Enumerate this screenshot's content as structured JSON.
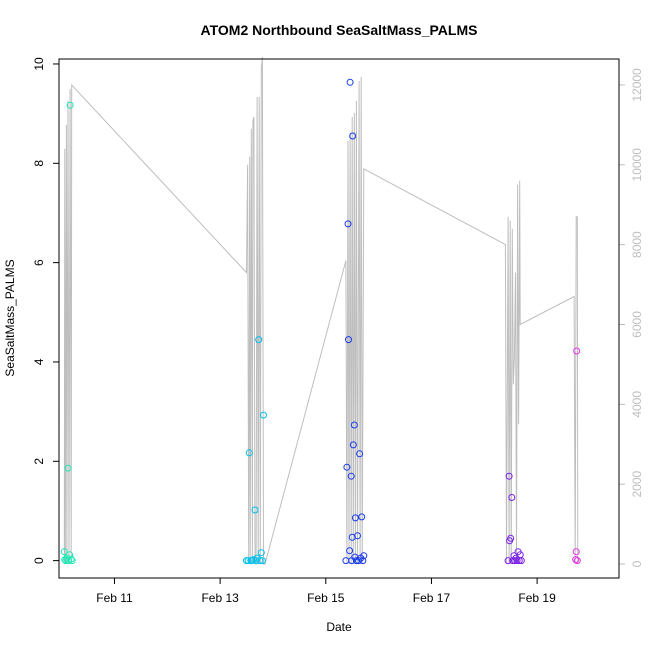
{
  "chart_data": {
    "type": "scatter",
    "title": "ATOM2 Northbound SeaSaltMass_PALMS",
    "xlabel": "Date",
    "ylabel": "SeaSaltMass_PALMS",
    "x_unit": "days (February)",
    "xlim": [
      9.95,
      20.55
    ],
    "ylim": [
      -0.35,
      10.1
    ],
    "x_ticks": [
      {
        "value": 11,
        "label": "Feb 11"
      },
      {
        "value": 13,
        "label": "Feb 13"
      },
      {
        "value": 15,
        "label": "Feb 15"
      },
      {
        "value": 17,
        "label": "Feb 17"
      },
      {
        "value": 19,
        "label": "Feb 19"
      }
    ],
    "y_ticks": [
      {
        "value": 0,
        "label": "0"
      },
      {
        "value": 2,
        "label": "2"
      },
      {
        "value": 4,
        "label": "4"
      },
      {
        "value": 6,
        "label": "6"
      },
      {
        "value": 8,
        "label": "8"
      },
      {
        "value": 10,
        "label": "10"
      }
    ],
    "y2lim": [
      -350,
      12650
    ],
    "y2_ticks": [
      {
        "value": 0,
        "label": "0"
      },
      {
        "value": 2000,
        "label": "2000"
      },
      {
        "value": 4000,
        "label": "4000"
      },
      {
        "value": 6000,
        "label": "6000"
      },
      {
        "value": 8000,
        "label": "8000"
      },
      {
        "value": 10000,
        "label": "10000"
      },
      {
        "value": 12000,
        "label": "12000"
      }
    ],
    "grid": false,
    "legend": "none",
    "colors": {
      "line": "#bebebe",
      "axis": "#000000",
      "right_axis": "#bebebe"
    },
    "points": [
      {
        "x": 10.05,
        "y": 0.18,
        "color": "#1de9b6"
      },
      {
        "x": 10.06,
        "y": 0.02,
        "color": "#1de9b6"
      },
      {
        "x": 10.08,
        "y": 0.0,
        "color": "#1de9b6"
      },
      {
        "x": 10.1,
        "y": 0.05,
        "color": "#1de9b6"
      },
      {
        "x": 10.12,
        "y": 1.86,
        "color": "#1de9b6"
      },
      {
        "x": 10.13,
        "y": 0.0,
        "color": "#1de9b6"
      },
      {
        "x": 10.15,
        "y": 0.12,
        "color": "#1de9b6"
      },
      {
        "x": 10.16,
        "y": 9.17,
        "color": "#1de9b6"
      },
      {
        "x": 10.18,
        "y": 0.03,
        "color": "#1de9b6"
      },
      {
        "x": 10.2,
        "y": 0.0,
        "color": "#1de9b6"
      },
      {
        "x": 13.5,
        "y": 0.0,
        "color": "#00c0ec"
      },
      {
        "x": 13.53,
        "y": 0.0,
        "color": "#00c0ec"
      },
      {
        "x": 13.55,
        "y": 2.17,
        "color": "#00c0ec"
      },
      {
        "x": 13.58,
        "y": 0.0,
        "color": "#00c0ec"
      },
      {
        "x": 13.6,
        "y": 0.0,
        "color": "#00c0ec"
      },
      {
        "x": 13.63,
        "y": 0.02,
        "color": "#00c0ec"
      },
      {
        "x": 13.66,
        "y": 1.02,
        "color": "#00c0ec"
      },
      {
        "x": 13.68,
        "y": 0.0,
        "color": "#00c0ec"
      },
      {
        "x": 13.7,
        "y": 0.05,
        "color": "#00c0ec"
      },
      {
        "x": 13.73,
        "y": 4.45,
        "color": "#00c0ec"
      },
      {
        "x": 13.75,
        "y": 0.0,
        "color": "#00c0ec"
      },
      {
        "x": 13.78,
        "y": 0.16,
        "color": "#00c0ec"
      },
      {
        "x": 13.8,
        "y": 0.0,
        "color": "#00c0ec"
      },
      {
        "x": 13.82,
        "y": 2.93,
        "color": "#00c0ec"
      },
      {
        "x": 15.38,
        "y": 0.0,
        "color": "#1a3cf0"
      },
      {
        "x": 15.4,
        "y": 1.88,
        "color": "#1a3cf0"
      },
      {
        "x": 15.42,
        "y": 6.78,
        "color": "#1a3cf0"
      },
      {
        "x": 15.43,
        "y": 4.45,
        "color": "#1a3cf0"
      },
      {
        "x": 15.45,
        "y": 0.2,
        "color": "#1a3cf0"
      },
      {
        "x": 15.46,
        "y": 9.63,
        "color": "#1a3cf0"
      },
      {
        "x": 15.48,
        "y": 1.7,
        "color": "#1a3cf0"
      },
      {
        "x": 15.49,
        "y": 0.0,
        "color": "#1a3cf0"
      },
      {
        "x": 15.5,
        "y": 0.47,
        "color": "#1a3cf0"
      },
      {
        "x": 15.51,
        "y": 8.55,
        "color": "#1a3cf0"
      },
      {
        "x": 15.52,
        "y": 2.33,
        "color": "#1a3cf0"
      },
      {
        "x": 15.54,
        "y": 2.73,
        "color": "#1a3cf0"
      },
      {
        "x": 15.55,
        "y": 0.07,
        "color": "#1a3cf0"
      },
      {
        "x": 15.56,
        "y": 0.86,
        "color": "#1a3cf0"
      },
      {
        "x": 15.58,
        "y": 0.0,
        "color": "#1a3cf0"
      },
      {
        "x": 15.6,
        "y": 0.5,
        "color": "#1a3cf0"
      },
      {
        "x": 15.62,
        "y": 0.0,
        "color": "#1a3cf0"
      },
      {
        "x": 15.64,
        "y": 2.15,
        "color": "#1a3cf0"
      },
      {
        "x": 15.66,
        "y": 0.05,
        "color": "#1a3cf0"
      },
      {
        "x": 15.68,
        "y": 0.88,
        "color": "#1a3cf0"
      },
      {
        "x": 15.7,
        "y": 0.0,
        "color": "#1a3cf0"
      },
      {
        "x": 15.72,
        "y": 0.1,
        "color": "#1a3cf0"
      },
      {
        "x": 18.45,
        "y": 0.0,
        "color": "#7a22e8"
      },
      {
        "x": 18.47,
        "y": 1.7,
        "color": "#7a22e8"
      },
      {
        "x": 18.48,
        "y": 0.4,
        "color": "#7a22e8"
      },
      {
        "x": 18.5,
        "y": 0.45,
        "color": "#7a22e8"
      },
      {
        "x": 18.52,
        "y": 1.27,
        "color": "#7a22e8"
      },
      {
        "x": 18.54,
        "y": 0.0,
        "color": "#7a22e8"
      },
      {
        "x": 18.56,
        "y": 0.1,
        "color": "#7a22e8"
      },
      {
        "x": 18.58,
        "y": 0.0,
        "color": "#7a22e8"
      },
      {
        "x": 18.6,
        "y": 0.05,
        "color": "#7a22e8"
      },
      {
        "x": 18.62,
        "y": 0.0,
        "color": "#7a22e8"
      },
      {
        "x": 18.64,
        "y": 0.18,
        "color": "#7a22e8"
      },
      {
        "x": 18.66,
        "y": 0.0,
        "color": "#7a22e8"
      },
      {
        "x": 18.68,
        "y": 0.12,
        "color": "#7a22e8"
      },
      {
        "x": 18.7,
        "y": 0.0,
        "color": "#7a22e8"
      },
      {
        "x": 19.73,
        "y": 0.02,
        "color": "#e633e6"
      },
      {
        "x": 19.74,
        "y": 0.18,
        "color": "#e633e6"
      },
      {
        "x": 19.75,
        "y": 4.22,
        "color": "#e633e6"
      },
      {
        "x": 19.76,
        "y": 0.0,
        "color": "#e633e6"
      }
    ],
    "line_series": {
      "name": "",
      "axis": "right",
      "points": [
        [
          10.05,
          0
        ],
        [
          10.06,
          10400
        ],
        [
          10.07,
          0
        ],
        [
          10.09,
          11000
        ],
        [
          10.1,
          0
        ],
        [
          10.12,
          11600
        ],
        [
          10.14,
          0
        ],
        [
          10.16,
          11900
        ],
        [
          10.18,
          0
        ],
        [
          10.19,
          12000
        ],
        [
          13.5,
          7300
        ],
        [
          13.52,
          10000
        ],
        [
          13.54,
          0
        ],
        [
          13.56,
          10200
        ],
        [
          13.57,
          0
        ],
        [
          13.59,
          10900
        ],
        [
          13.61,
          0
        ],
        [
          13.62,
          11100
        ],
        [
          13.64,
          11200
        ],
        [
          13.66,
          0
        ],
        [
          13.68,
          0
        ],
        [
          13.7,
          11700
        ],
        [
          13.72,
          0
        ],
        [
          13.74,
          11700
        ],
        [
          13.76,
          0
        ],
        [
          13.78,
          12400
        ],
        [
          13.8,
          12700
        ],
        [
          13.82,
          0
        ],
        [
          13.85,
          0
        ],
        [
          15.38,
          7600
        ],
        [
          15.4,
          0
        ],
        [
          15.42,
          10600
        ],
        [
          15.44,
          0
        ],
        [
          15.46,
          10800
        ],
        [
          15.48,
          0
        ],
        [
          15.5,
          11200
        ],
        [
          15.52,
          0
        ],
        [
          15.54,
          11300
        ],
        [
          15.56,
          0
        ],
        [
          15.58,
          11600
        ],
        [
          15.6,
          0
        ],
        [
          15.63,
          12100
        ],
        [
          15.65,
          0
        ],
        [
          15.67,
          12200
        ],
        [
          15.69,
          0
        ],
        [
          15.72,
          9900
        ],
        [
          18.4,
          8000
        ],
        [
          18.42,
          0
        ],
        [
          18.45,
          8700
        ],
        [
          18.47,
          0
        ],
        [
          18.49,
          8600
        ],
        [
          18.51,
          0
        ],
        [
          18.53,
          8400
        ],
        [
          18.55,
          4500
        ],
        [
          18.57,
          5200
        ],
        [
          18.59,
          7300
        ],
        [
          18.61,
          0
        ],
        [
          18.63,
          9500
        ],
        [
          18.65,
          3500
        ],
        [
          18.67,
          9600
        ],
        [
          18.68,
          6000
        ],
        [
          19.7,
          6700
        ],
        [
          19.72,
          0
        ],
        [
          19.74,
          8700
        ],
        [
          19.76,
          8700
        ],
        [
          19.77,
          0
        ]
      ]
    }
  }
}
